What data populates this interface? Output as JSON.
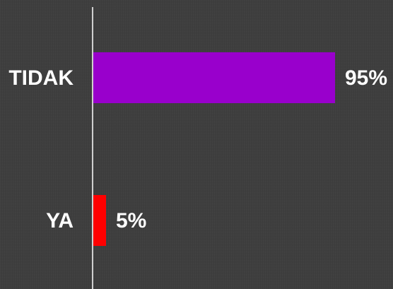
{
  "chart_data": {
    "type": "bar",
    "orientation": "horizontal",
    "categories": [
      "TIDAK",
      "YA"
    ],
    "values": [
      95,
      5
    ],
    "value_labels": [
      "95%",
      "5%"
    ],
    "colors": [
      "#9900cc",
      "#ff0000"
    ],
    "xlim": [
      0,
      100
    ],
    "title": "",
    "xlabel": "",
    "ylabel": "",
    "grid": false,
    "legend": "none",
    "background": "#3d3d3d",
    "axis_color": "#ffffff"
  }
}
